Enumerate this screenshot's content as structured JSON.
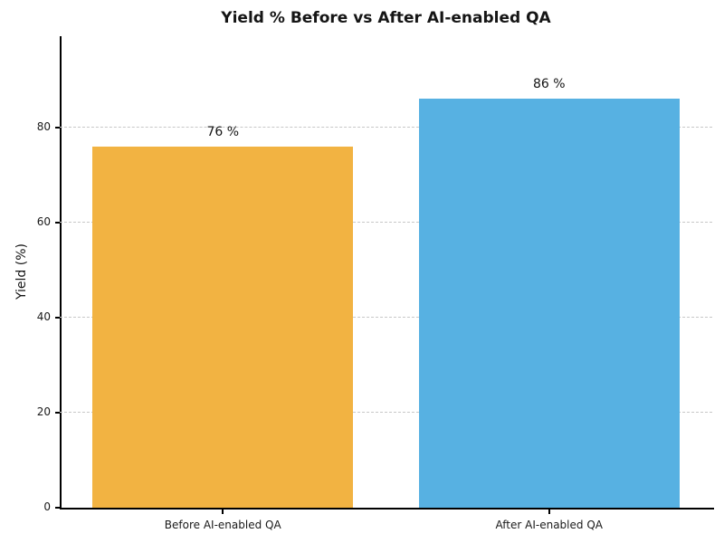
{
  "chart_data": {
    "type": "bar",
    "title": "Yield % Before vs After AI-enabled QA",
    "xlabel": "",
    "ylabel": "Yield (%)",
    "categories": [
      "Before AI-enabled QA",
      "After AI-enabled QA"
    ],
    "values": [
      76,
      86
    ],
    "value_labels": [
      "76 %",
      "86 %"
    ],
    "bar_colors": [
      "#F2B342",
      "#57B1E2"
    ],
    "ylim": [
      0,
      99.2
    ],
    "yticks": [
      0,
      20,
      40,
      60,
      80
    ],
    "grid": "horizontal dashed gridlines at y-ticks, none at 0",
    "grid_color": "#c7c7c7",
    "spine_color": "#000000",
    "background_color": "#ffffff",
    "legend_position": "none",
    "bar_width_fraction": 0.8
  }
}
